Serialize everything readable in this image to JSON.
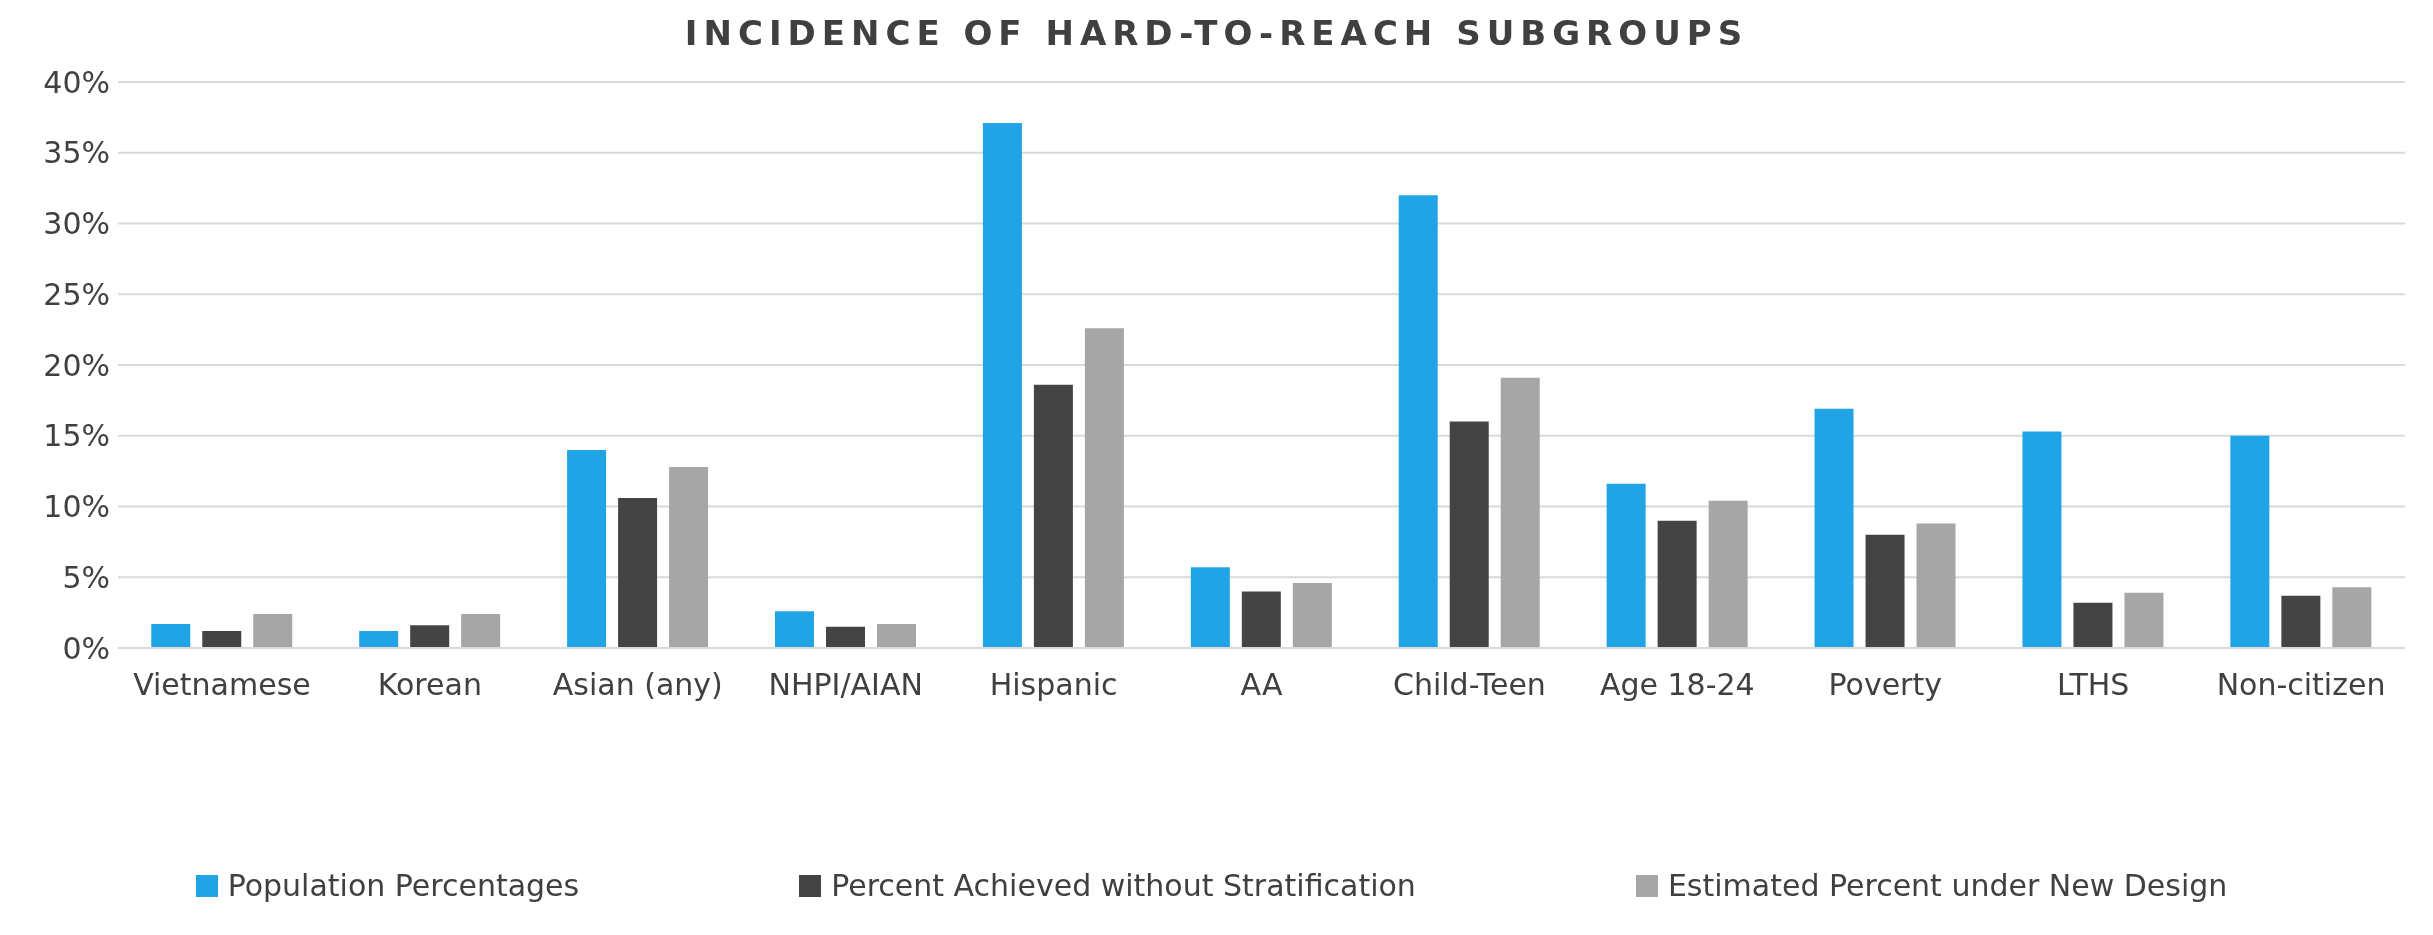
{
  "chart_data": {
    "type": "bar",
    "title": "INCIDENCE OF HARD-TO-REACH SUBGROUPS",
    "categories": [
      "Vietnamese",
      "Korean",
      "Asian (any)",
      "NHPI/AIAN",
      "Hispanic",
      "AA",
      "Child-Teen",
      "Age 18-24",
      "Poverty",
      "LTHS",
      "Non-citizen"
    ],
    "series": [
      {
        "name": "Population Percentages",
        "color": "#20a4e6",
        "values": [
          1.7,
          1.2,
          14.0,
          2.6,
          37.1,
          5.7,
          32.0,
          11.6,
          16.9,
          15.3,
          15.0
        ]
      },
      {
        "name": "Percent Achieved without Stratification",
        "color": "#444444",
        "values": [
          1.2,
          1.6,
          10.6,
          1.5,
          18.6,
          4.0,
          16.0,
          9.0,
          8.0,
          3.2,
          3.7
        ]
      },
      {
        "name": "Estimated Percent under New Design",
        "color": "#a6a6a6",
        "values": [
          2.4,
          2.4,
          12.8,
          1.7,
          22.6,
          4.6,
          19.1,
          10.4,
          8.8,
          3.9,
          4.3
        ]
      }
    ],
    "ylim": [
      0,
      40
    ],
    "yticks": [
      {
        "value": 0,
        "label": "0%"
      },
      {
        "value": 5,
        "label": "5%"
      },
      {
        "value": 10,
        "label": "10%"
      },
      {
        "value": 15,
        "label": "15%"
      },
      {
        "value": 20,
        "label": "20%"
      },
      {
        "value": 25,
        "label": "25%"
      },
      {
        "value": 30,
        "label": "30%"
      },
      {
        "value": 35,
        "label": "35%"
      },
      {
        "value": 40,
        "label": "40%"
      }
    ],
    "grid": "y",
    "legend": "bottom"
  }
}
